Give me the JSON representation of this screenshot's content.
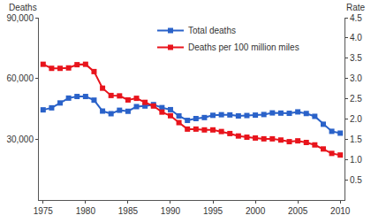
{
  "chart_data": {
    "type": "line",
    "ylabel": "Deaths",
    "y2label": "Rate",
    "x": [
      1975,
      1976,
      1977,
      1978,
      1979,
      1980,
      1981,
      1982,
      1983,
      1984,
      1985,
      1986,
      1987,
      1988,
      1989,
      1990,
      1991,
      1992,
      1993,
      1994,
      1995,
      1996,
      1997,
      1998,
      1999,
      2000,
      2001,
      2002,
      2003,
      2004,
      2005,
      2006,
      2007,
      2008,
      2009,
      2010
    ],
    "series": [
      {
        "name": "Total deaths",
        "color": "#2a62c9",
        "marker": "square",
        "values": [
          44500,
          45500,
          47900,
          50300,
          51100,
          51100,
          49300,
          43900,
          42600,
          44300,
          43800,
          46100,
          46400,
          47100,
          45600,
          44600,
          41500,
          39300,
          40200,
          40700,
          41800,
          42100,
          42000,
          41500,
          41700,
          41900,
          42200,
          43000,
          42900,
          42800,
          43500,
          42700,
          41300,
          37400,
          33900,
          33000
        ]
      },
      {
        "name": "Deaths per 100 million miles",
        "color": "#e8141c",
        "marker": "square",
        "axis": "y2",
        "values": [
          3.35,
          3.25,
          3.25,
          3.26,
          3.34,
          3.35,
          3.17,
          2.76,
          2.58,
          2.57,
          2.47,
          2.51,
          2.41,
          2.32,
          2.17,
          2.08,
          1.91,
          1.75,
          1.75,
          1.73,
          1.73,
          1.69,
          1.64,
          1.58,
          1.55,
          1.53,
          1.51,
          1.51,
          1.48,
          1.44,
          1.46,
          1.42,
          1.36,
          1.26,
          1.15,
          1.11
        ]
      }
    ],
    "xlim": [
      1974.5,
      2010.5
    ],
    "xticks": [
      1975,
      1980,
      1985,
      1990,
      1995,
      2000,
      2005,
      2010
    ],
    "ylim": [
      0,
      90000
    ],
    "yticks": [
      {
        "value": 30000,
        "label": "30,000"
      },
      {
        "value": 60000,
        "label": "60,000"
      },
      {
        "value": 90000,
        "label": "90,000"
      }
    ],
    "y2lim": [
      0,
      4.5
    ],
    "y2ticks": [
      0.5,
      {
        "value": 1,
        "label": "1.0"
      },
      1.5,
      {
        "value": 2,
        "label": "2.0"
      },
      2.5,
      {
        "value": 3,
        "label": "3.0"
      },
      3.5,
      {
        "value": 4,
        "label": "4.0"
      },
      4.5
    ],
    "grid": false,
    "legend": "upper center"
  }
}
